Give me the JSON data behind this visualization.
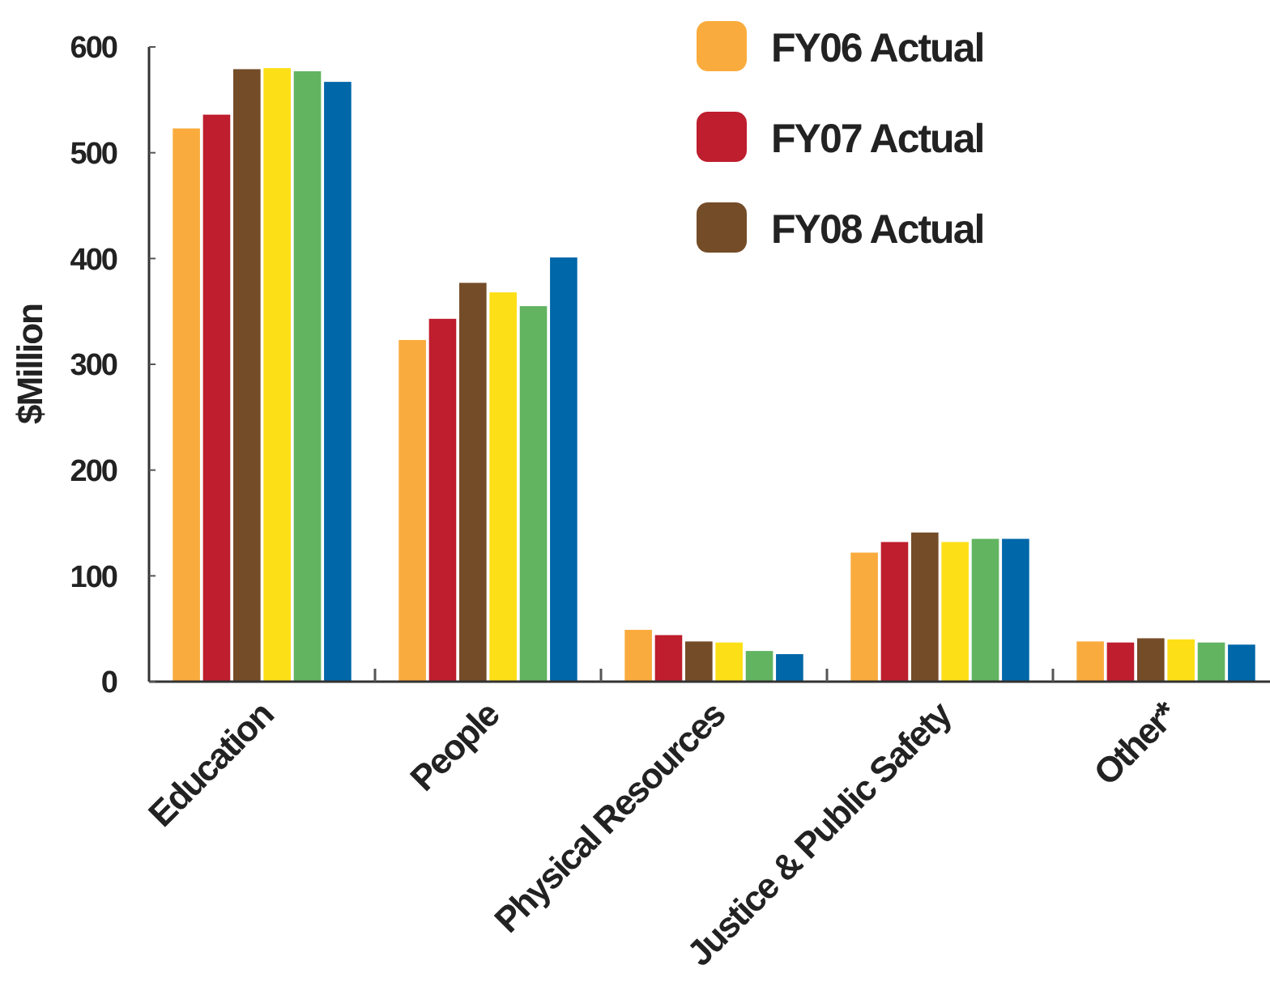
{
  "chart_data": {
    "type": "bar",
    "ylabel": "$Million",
    "categories": [
      "Education",
      "People",
      "Physical Resources",
      "Justice & Public Safety",
      "Other*"
    ],
    "ylim": [
      0,
      600
    ],
    "yticks": [
      0,
      100,
      200,
      300,
      400,
      500,
      600
    ],
    "grid": false,
    "legend": "top right",
    "series": [
      {
        "name": "FY06 Actual",
        "color": "#f9ac3d",
        "values": [
          523,
          323,
          49,
          122,
          38
        ]
      },
      {
        "name": "FY07 Actual",
        "color": "#be1e2d",
        "values": [
          536,
          343,
          44,
          132,
          37
        ]
      },
      {
        "name": "FY08 Actual",
        "color": "#744c28",
        "values": [
          579,
          377,
          38,
          141,
          41
        ]
      },
      {
        "color": "#fddf17",
        "values": [
          580,
          368,
          37,
          132,
          40
        ]
      },
      {
        "color": "#62b461",
        "values": [
          577,
          355,
          29,
          135,
          37
        ]
      },
      {
        "color": "#0067a9",
        "values": [
          567,
          401,
          26,
          135,
          35
        ]
      }
    ]
  }
}
